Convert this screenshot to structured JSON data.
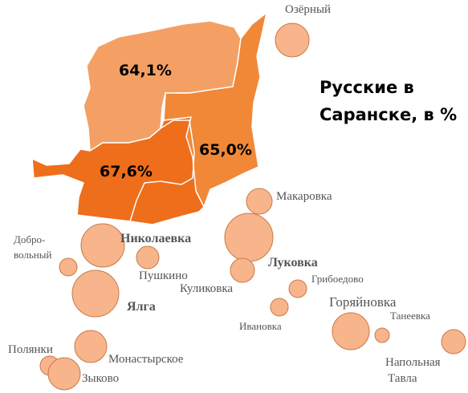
{
  "title_line1": "Русские в",
  "title_line2": "Саранске, в %",
  "districts": [
    {
      "id": "north",
      "percent_label": "64,1%",
      "value": 64.1,
      "color": "#F4A064"
    },
    {
      "id": "east",
      "percent_label": "65,0%",
      "value": 65.0,
      "color": "#F08838"
    },
    {
      "id": "southwest",
      "percent_label": "67,6%",
      "value": 67.6,
      "color": "#EE6E1C"
    }
  ],
  "settlements": [
    {
      "name": "Озёрный"
    },
    {
      "name": "Макаровка"
    },
    {
      "name": "Добро-",
      "name2": "вольный"
    },
    {
      "name": "Николаевка"
    },
    {
      "name": "Пушкино"
    },
    {
      "name": "Луковка"
    },
    {
      "name": "Куликовка"
    },
    {
      "name": "Грибоедово"
    },
    {
      "name": "Ялга"
    },
    {
      "name": "Ивановка"
    },
    {
      "name": "Горяйновка"
    },
    {
      "name": "Танеевка"
    },
    {
      "name": "Полянки"
    },
    {
      "name": "Монастырское"
    },
    {
      "name": "Зыково"
    },
    {
      "name": "Напольная",
      "name2": "Тавла"
    }
  ],
  "colors": {
    "bubble_fill": "#F8B48A",
    "bubble_stroke": "#C77A4A",
    "district_border": "#FFFFFF"
  }
}
